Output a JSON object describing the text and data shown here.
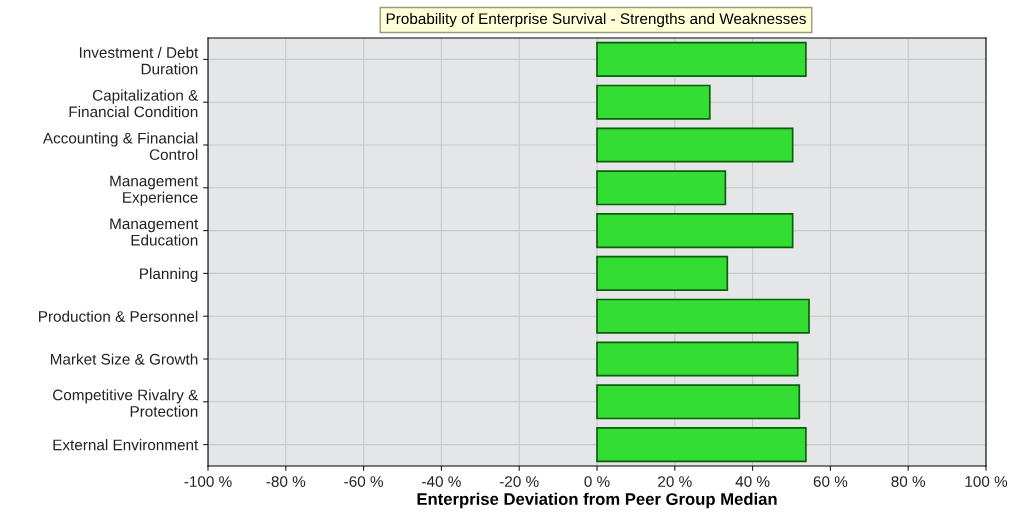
{
  "chart_data": {
    "type": "bar",
    "orientation": "horizontal",
    "title": "Probability of Enterprise Survival - Strengths and Weaknesses",
    "xlabel": "Enterprise Deviation from Peer Group Median",
    "categories": [
      "Investment / Debt\nDuration",
      "Capitalization &\nFinancial Condition",
      "Accounting & Financial\nControl",
      "Management\nExperience",
      "Management\nEducation",
      "Planning",
      "Production & Personnel",
      "Market Size & Growth",
      "Competitive Rivalry &\nProtection",
      "External Environment"
    ],
    "values": [
      53.7,
      29,
      50.3,
      33,
      50.3,
      33.5,
      54.5,
      51.6,
      52,
      53.7
    ],
    "color": "#33dd33",
    "xlim": [
      -100,
      100
    ],
    "xticks": [
      {
        "value": -100,
        "label": "-100 %"
      },
      {
        "value": -80,
        "label": "-80 %"
      },
      {
        "value": -60,
        "label": "-60 %"
      },
      {
        "value": -40,
        "label": "-40 %"
      },
      {
        "value": -20,
        "label": "-20 %"
      },
      {
        "value": 0,
        "label": "0 %"
      },
      {
        "value": 20,
        "label": "20 %"
      },
      {
        "value": 40,
        "label": "40 %"
      },
      {
        "value": 60,
        "label": "60 %"
      },
      {
        "value": 80,
        "label": "80 %"
      },
      {
        "value": 100,
        "label": "100 %"
      }
    ],
    "grid": true
  }
}
